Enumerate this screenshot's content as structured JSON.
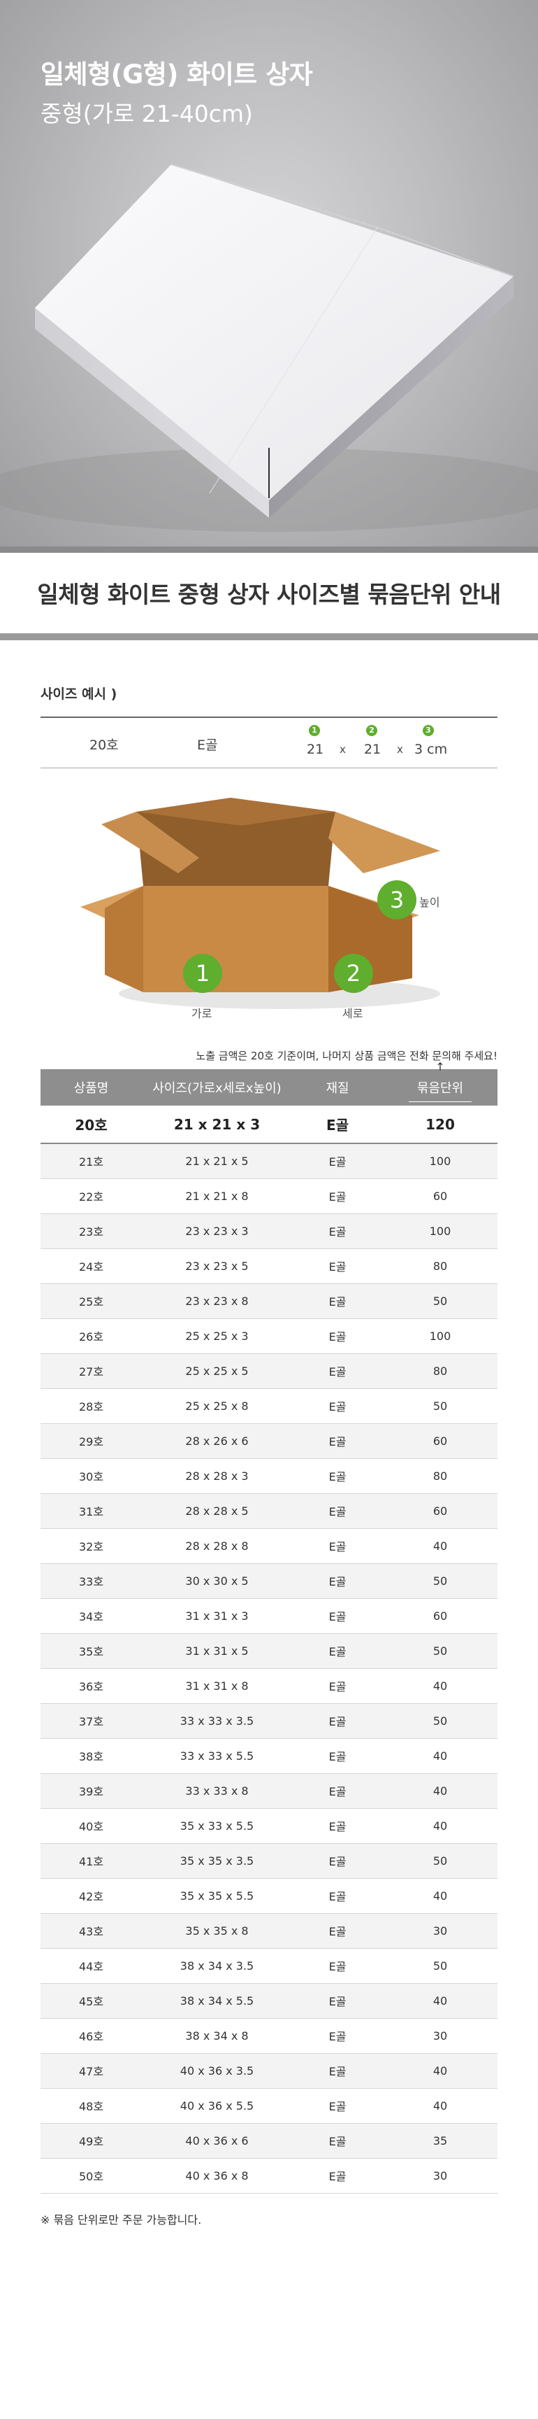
{
  "hero": {
    "title": "일체형(G형) 화이트 상자",
    "subtitle": "중형(가로 21-40cm)"
  },
  "banner": {
    "title": "일체형 화이트 중형 상자 사이즈별 묶음단위 안내"
  },
  "example": {
    "title": "사이즈 예시 )",
    "model": "20호",
    "material": "E골",
    "width": "21",
    "length": "21",
    "height": "3 cm",
    "times": "x",
    "markers": [
      "1",
      "2",
      "3"
    ]
  },
  "diagram": {
    "markers": [
      "1",
      "2",
      "3"
    ],
    "label_width": "가로",
    "label_length": "세로",
    "label_height": "높이"
  },
  "table": {
    "note": "노출 금액은 20호 기준이며, 나머지 상품 금액은 전화 문의해 주세요!",
    "arrow": "↑",
    "headers": [
      "상품명",
      "사이즈(가로x세로x높이)",
      "재질",
      "묶음단위"
    ],
    "rows": [
      [
        "20호",
        "21 x 21 x 3",
        "E골",
        "120"
      ],
      [
        "21호",
        "21 x 21 x 5",
        "E골",
        "100"
      ],
      [
        "22호",
        "21 x 21 x 8",
        "E골",
        "60"
      ],
      [
        "23호",
        "23 x 23 x 3",
        "E골",
        "100"
      ],
      [
        "24호",
        "23 x 23 x 5",
        "E골",
        "80"
      ],
      [
        "25호",
        "23 x 23 x 8",
        "E골",
        "50"
      ],
      [
        "26호",
        "25 x 25 x 3",
        "E골",
        "100"
      ],
      [
        "27호",
        "25 x 25 x 5",
        "E골",
        "80"
      ],
      [
        "28호",
        "25 x 25 x 8",
        "E골",
        "50"
      ],
      [
        "29호",
        "28 x 26 x 6",
        "E골",
        "60"
      ],
      [
        "30호",
        "28 x 28 x 3",
        "E골",
        "80"
      ],
      [
        "31호",
        "28 x 28 x 5",
        "E골",
        "60"
      ],
      [
        "32호",
        "28 x 28 x 8",
        "E골",
        "40"
      ],
      [
        "33호",
        "30 x 30 x 5",
        "E골",
        "50"
      ],
      [
        "34호",
        "31 x 31 x 3",
        "E골",
        "60"
      ],
      [
        "35호",
        "31 x 31 x 5",
        "E골",
        "50"
      ],
      [
        "36호",
        "31 x 31 x 8",
        "E골",
        "40"
      ],
      [
        "37호",
        "33 x 33 x 3.5",
        "E골",
        "50"
      ],
      [
        "38호",
        "33 x 33 x 5.5",
        "E골",
        "40"
      ],
      [
        "39호",
        "33 x 33 x 8",
        "E골",
        "40"
      ],
      [
        "40호",
        "35 x 33 x 5.5",
        "E골",
        "40"
      ],
      [
        "41호",
        "35 x 35 x 3.5",
        "E골",
        "50"
      ],
      [
        "42호",
        "35 x 35 x 5.5",
        "E골",
        "40"
      ],
      [
        "43호",
        "35 x 35 x 8",
        "E골",
        "30"
      ],
      [
        "44호",
        "38 x 34 x 3.5",
        "E골",
        "50"
      ],
      [
        "45호",
        "38 x 34 x 5.5",
        "E골",
        "40"
      ],
      [
        "46호",
        "38 x 34 x 8",
        "E골",
        "30"
      ],
      [
        "47호",
        "40 x 36 x 3.5",
        "E골",
        "40"
      ],
      [
        "48호",
        "40 x 36 x 5.5",
        "E골",
        "40"
      ],
      [
        "49호",
        "40 x 36 x 6",
        "E골",
        "35"
      ],
      [
        "50호",
        "40 x 36 x 8",
        "E골",
        "30"
      ]
    ]
  },
  "footnote": "※ 묶음 단위로만 주문 가능합니다.",
  "colors": {
    "accent_green": "#5fae2e",
    "table_header_bg": "#8e8e8e",
    "hero_bg": "#bdbdbf"
  }
}
